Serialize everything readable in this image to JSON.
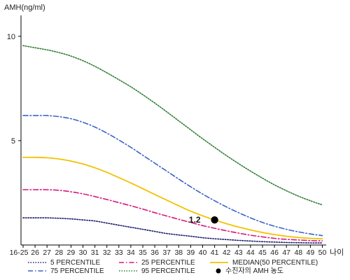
{
  "chart_data": {
    "type": "line",
    "ylabel": "AMH(ng/ml)",
    "xlabel": "나이",
    "x_ticks": [
      "16-25",
      "26",
      "27",
      "28",
      "29",
      "30",
      "31",
      "32",
      "33",
      "34",
      "35",
      "36",
      "37",
      "38",
      "39",
      "40",
      "41",
      "42",
      "43",
      "44",
      "45",
      "46",
      "47",
      "48",
      "49",
      "50"
    ],
    "y_ticks": [
      5,
      10
    ],
    "ylim": [
      0,
      11
    ],
    "grid": false,
    "legend_position": "bottom",
    "series": [
      {
        "name": "5 PERCENTILE",
        "color": "#1a1a6e",
        "style": "dotted",
        "values": [
          1.3,
          1.3,
          1.3,
          1.28,
          1.25,
          1.2,
          1.15,
          1.05,
          0.95,
          0.85,
          0.75,
          0.65,
          0.55,
          0.48,
          0.42,
          0.35,
          0.3,
          0.26,
          0.22,
          0.19,
          0.16,
          0.14,
          0.12,
          0.11,
          0.1,
          0.1
        ]
      },
      {
        "name": "25 PERCENTILE",
        "color": "#d6187a",
        "style": "dashdot",
        "values": [
          2.65,
          2.65,
          2.65,
          2.62,
          2.55,
          2.45,
          2.32,
          2.18,
          2.03,
          1.88,
          1.72,
          1.55,
          1.39,
          1.23,
          1.08,
          0.93,
          0.8,
          0.68,
          0.57,
          0.47,
          0.39,
          0.32,
          0.27,
          0.24,
          0.21,
          0.2
        ]
      },
      {
        "name": "MEDIAN(50 PERCENTILE)",
        "color": "#f2c200",
        "style": "solid",
        "values": [
          4.2,
          4.2,
          4.18,
          4.12,
          4.02,
          3.88,
          3.7,
          3.48,
          3.23,
          2.97,
          2.7,
          2.42,
          2.15,
          1.88,
          1.62,
          1.4,
          1.2,
          1.02,
          0.86,
          0.72,
          0.6,
          0.5,
          0.42,
          0.36,
          0.32,
          0.3
        ]
      },
      {
        "name": "75 PERCENTILE",
        "color": "#3a63c4",
        "style": "dashdot",
        "values": [
          6.2,
          6.2,
          6.2,
          6.15,
          6.05,
          5.88,
          5.65,
          5.36,
          5.03,
          4.68,
          4.3,
          3.92,
          3.54,
          3.16,
          2.79,
          2.44,
          2.12,
          1.82,
          1.55,
          1.3,
          1.08,
          0.9,
          0.75,
          0.63,
          0.53,
          0.45
        ]
      },
      {
        "name": "95 PERCENTILE",
        "color": "#2e7d32",
        "style": "dotted",
        "values": [
          9.55,
          9.45,
          9.35,
          9.22,
          9.05,
          8.83,
          8.56,
          8.25,
          7.92,
          7.58,
          7.2,
          6.8,
          6.38,
          5.95,
          5.52,
          5.09,
          4.68,
          4.28,
          3.9,
          3.54,
          3.2,
          2.88,
          2.6,
          2.34,
          2.12,
          1.92
        ]
      }
    ],
    "marker": {
      "name": "수진자의 AMH 농도",
      "x": "41",
      "y": 1.2,
      "label": "1.2",
      "color": "#000000"
    }
  }
}
